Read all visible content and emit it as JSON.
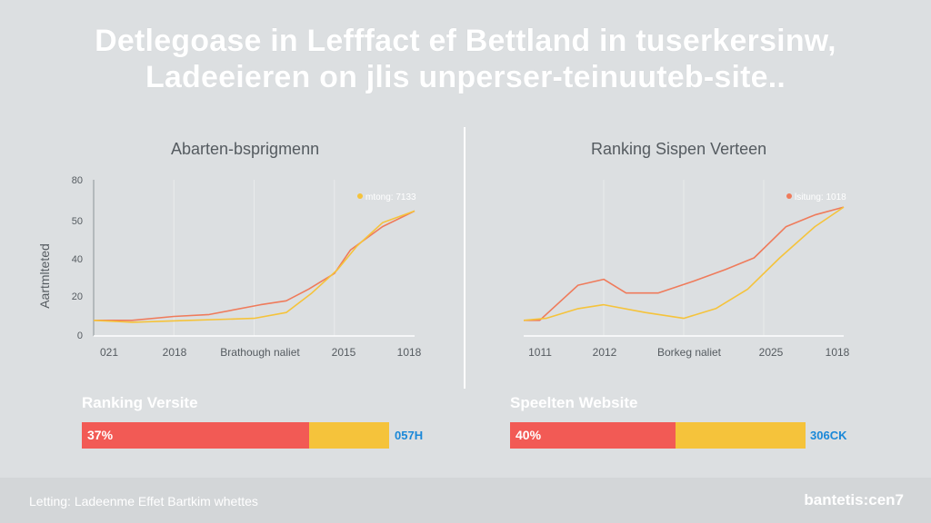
{
  "headline": {
    "line1": "Detlegoase in Lefffact ef Bettland in tuserkersinw,",
    "line2": "Ladeeieren on jlis unperser-teinuuteb-site.."
  },
  "chart_data": [
    {
      "type": "line",
      "title": "Abarten-bsprigmenn",
      "xlabel": "Brathough naliet",
      "ylabel": "Aartmlteted",
      "x_tick_labels": [
        "021",
        "2018",
        "2015",
        "1018"
      ],
      "y_tick_labels": [
        "0",
        "20",
        "40",
        "50",
        "80"
      ],
      "ylim": [
        0,
        80
      ],
      "legend": {
        "label": "mtong: 7133",
        "color": "#f5c33b",
        "position": "top-right"
      },
      "series": [
        {
          "name": "red",
          "color": "#ef7b5b",
          "x": [
            0,
            0.12,
            0.25,
            0.36,
            0.52,
            0.6,
            0.67,
            0.75,
            0.8,
            0.9,
            1.0
          ],
          "y": [
            8,
            8,
            10,
            11,
            16,
            18,
            24,
            32,
            44,
            56,
            64
          ]
        },
        {
          "name": "yellow",
          "color": "#f5c33b",
          "x": [
            0,
            0.12,
            0.3,
            0.5,
            0.6,
            0.68,
            0.76,
            0.82,
            0.9,
            1.0
          ],
          "y": [
            8,
            7,
            8,
            9,
            12,
            22,
            34,
            46,
            58,
            64
          ]
        }
      ]
    },
    {
      "type": "line",
      "title": "Ranking Sispen Verteen",
      "xlabel": "Borkeg naliet",
      "ylabel": "",
      "x_tick_labels": [
        "1011",
        "2012",
        "2025",
        "1018"
      ],
      "y_tick_labels": [],
      "ylim": [
        0,
        80
      ],
      "legend": {
        "label": "lsitung: 1018",
        "color": "#ef7b5b",
        "position": "top-right"
      },
      "series": [
        {
          "name": "red",
          "color": "#ef7b5b",
          "x": [
            0,
            0.05,
            0.17,
            0.25,
            0.32,
            0.42,
            0.53,
            0.63,
            0.72,
            0.82,
            0.91,
            1.0
          ],
          "y": [
            8,
            8,
            26,
            29,
            22,
            22,
            28,
            34,
            40,
            56,
            62,
            66
          ]
        },
        {
          "name": "yellow",
          "color": "#f5c33b",
          "x": [
            0,
            0.07,
            0.17,
            0.25,
            0.38,
            0.5,
            0.6,
            0.7,
            0.8,
            0.91,
            1.0
          ],
          "y": [
            8,
            9,
            14,
            16,
            12,
            9,
            14,
            24,
            40,
            56,
            66
          ]
        }
      ]
    }
  ],
  "bars": [
    {
      "label": "Ranking Versite",
      "percent_text": "37%",
      "fraction": 0.74,
      "end_text": "057H",
      "color_a": "#f25a55",
      "color_b": "#f5c33b",
      "end_color": "#1a88d8"
    },
    {
      "label": "Speelten Website",
      "percent_text": "40%",
      "fraction": 0.56,
      "end_text": "306CK",
      "color_a": "#f25a55",
      "color_b": "#f5c33b",
      "end_color": "#1a88d8"
    }
  ],
  "footer": {
    "left": "Letting: Ladeenme Effet Bartkim whettes",
    "right": "bantetis:cen7"
  }
}
